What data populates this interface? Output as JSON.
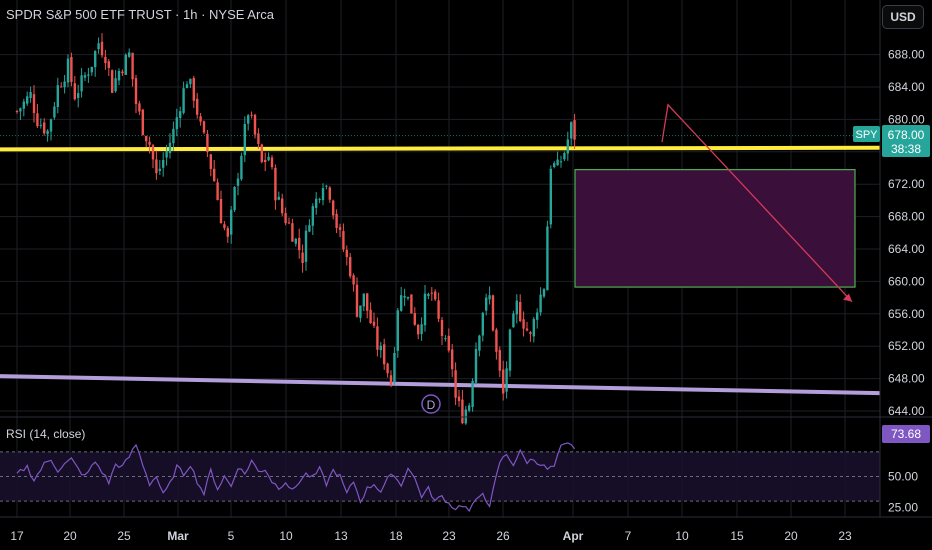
{
  "header": {
    "title": "SPDR S&P 500 ETF TRUST · 1h · NYSE Arca",
    "currency": "USD"
  },
  "price_badge": {
    "symbol": "SPY",
    "price": "678.00",
    "countdown": "38:38"
  },
  "rsi": {
    "label": "RSI (14, close)",
    "value": "73.68",
    "ticks": [
      "50.00",
      "25.00"
    ]
  },
  "colors": {
    "up": "#26a69a",
    "down": "#ef5350",
    "yellow": "#ffeb3b",
    "lavender": "#b39ddb",
    "zone_fill": "#3a0f3a",
    "zone_border": "#4caf50",
    "arrow": "#d43a5a",
    "rsi_line": "#7e57c2"
  },
  "marker": "D",
  "chart_data": {
    "type": "candlestick",
    "price_axis": {
      "ticks": [
        688,
        684,
        680,
        676,
        672,
        668,
        664,
        660,
        656,
        652,
        648,
        644
      ]
    },
    "time_axis": {
      "labels": [
        "17",
        "20",
        "25",
        "Mar",
        "5",
        "10",
        "13",
        "18",
        "23",
        "26",
        "Apr",
        "7",
        "10",
        "15",
        "20",
        "23"
      ]
    },
    "resistance_line": {
      "price_start": 676.3,
      "price_end": 676.5
    },
    "support_line": {
      "price_start": 648.3,
      "price_end": 646.2
    },
    "demand_zone": {
      "top": 673.8,
      "bottom": 659.3
    },
    "projection": {
      "from_price": 681.8,
      "to_price": 657.5
    },
    "close_path": [
      [
        0,
        681.0
      ],
      [
        4,
        683.0
      ],
      [
        6,
        680.0
      ],
      [
        9,
        678.5
      ],
      [
        12,
        684.0
      ],
      [
        15,
        686.5
      ],
      [
        17,
        683.0
      ],
      [
        19,
        684.5
      ],
      [
        22,
        687.0
      ],
      [
        24,
        689.5
      ],
      [
        26,
        688.0
      ],
      [
        28,
        684.0
      ],
      [
        30,
        686.0
      ],
      [
        33,
        688.0
      ],
      [
        35,
        682.0
      ],
      [
        37,
        679.0
      ],
      [
        39,
        677.0
      ],
      [
        41,
        673.0
      ],
      [
        44,
        676.0
      ],
      [
        46,
        678.5
      ],
      [
        48,
        682.0
      ],
      [
        50,
        685.0
      ],
      [
        52,
        683.0
      ],
      [
        54,
        679.0
      ],
      [
        56,
        676.0
      ],
      [
        58,
        672.5
      ],
      [
        60,
        668.0
      ],
      [
        62,
        665.0
      ],
      [
        64,
        671.0
      ],
      [
        66,
        676.0
      ],
      [
        68,
        681.0
      ],
      [
        70,
        678.0
      ],
      [
        72,
        674.5
      ],
      [
        74,
        675.5
      ],
      [
        76,
        671.0
      ],
      [
        78,
        668.5
      ],
      [
        80,
        667.0
      ],
      [
        82,
        665.0
      ],
      [
        84,
        663.0
      ],
      [
        86,
        668.0
      ],
      [
        88,
        670.0
      ],
      [
        90,
        672.5
      ],
      [
        92,
        671.0
      ],
      [
        94,
        667.0
      ],
      [
        96,
        664.0
      ],
      [
        98,
        661.5
      ],
      [
        100,
        656.5
      ],
      [
        102,
        658.0
      ],
      [
        104,
        655.0
      ],
      [
        106,
        652.0
      ],
      [
        108,
        650.5
      ],
      [
        110,
        647.5
      ],
      [
        112,
        657.0
      ],
      [
        114,
        659.0
      ],
      [
        116,
        656.5
      ],
      [
        118,
        654.0
      ],
      [
        120,
        657.5
      ],
      [
        122,
        658.5
      ],
      [
        124,
        655.0
      ],
      [
        126,
        652.0
      ],
      [
        128,
        649.5
      ],
      [
        129,
        645.5
      ],
      [
        131,
        643.5
      ],
      [
        133,
        645.0
      ],
      [
        135,
        652.0
      ],
      [
        137,
        656.5
      ],
      [
        139,
        658.0
      ],
      [
        141,
        651.0
      ],
      [
        143,
        646.0
      ],
      [
        145,
        653.0
      ],
      [
        147,
        657.0
      ],
      [
        149,
        655.0
      ],
      [
        151,
        653.0
      ],
      [
        153,
        657.0
      ],
      [
        155,
        659.5
      ],
      [
        157,
        674.5
      ],
      [
        159,
        674.0
      ],
      [
        161,
        676.0
      ],
      [
        163,
        679.0
      ],
      [
        164,
        678.0
      ]
    ],
    "rsi_path": [
      [
        0,
        52
      ],
      [
        3,
        58
      ],
      [
        5,
        47
      ],
      [
        8,
        60
      ],
      [
        10,
        64
      ],
      [
        12,
        55
      ],
      [
        14,
        60
      ],
      [
        16,
        64
      ],
      [
        18,
        56
      ],
      [
        20,
        50
      ],
      [
        23,
        62
      ],
      [
        25,
        54
      ],
      [
        27,
        45
      ],
      [
        29,
        60
      ],
      [
        31,
        58
      ],
      [
        33,
        66
      ],
      [
        35,
        76
      ],
      [
        37,
        60
      ],
      [
        39,
        44
      ],
      [
        41,
        50
      ],
      [
        43,
        35
      ],
      [
        45,
        44
      ],
      [
        47,
        58
      ],
      [
        49,
        52
      ],
      [
        51,
        60
      ],
      [
        53,
        46
      ],
      [
        55,
        36
      ],
      [
        57,
        55
      ],
      [
        59,
        40
      ],
      [
        61,
        50
      ],
      [
        63,
        42
      ],
      [
        65,
        58
      ],
      [
        67,
        52
      ],
      [
        69,
        63
      ],
      [
        71,
        54
      ],
      [
        73,
        56
      ],
      [
        75,
        46
      ],
      [
        77,
        41
      ],
      [
        79,
        46
      ],
      [
        81,
        38
      ],
      [
        83,
        46
      ],
      [
        85,
        52
      ],
      [
        87,
        49
      ],
      [
        89,
        56
      ],
      [
        91,
        44
      ],
      [
        93,
        55
      ],
      [
        95,
        50
      ],
      [
        97,
        36
      ],
      [
        99,
        46
      ],
      [
        101,
        30
      ],
      [
        103,
        40
      ],
      [
        105,
        44
      ],
      [
        107,
        38
      ],
      [
        109,
        48
      ],
      [
        111,
        52
      ],
      [
        113,
        42
      ],
      [
        115,
        58
      ],
      [
        117,
        48
      ],
      [
        119,
        34
      ],
      [
        121,
        40
      ],
      [
        123,
        30
      ],
      [
        125,
        34
      ],
      [
        127,
        28
      ],
      [
        129,
        24
      ],
      [
        131,
        27
      ],
      [
        133,
        22
      ],
      [
        135,
        30
      ],
      [
        137,
        38
      ],
      [
        139,
        24
      ],
      [
        140,
        38
      ],
      [
        142,
        62
      ],
      [
        144,
        68
      ],
      [
        146,
        60
      ],
      [
        148,
        70
      ],
      [
        150,
        62
      ],
      [
        152,
        64
      ],
      [
        154,
        60
      ],
      [
        156,
        56
      ],
      [
        158,
        58
      ],
      [
        160,
        74
      ],
      [
        162,
        76
      ],
      [
        164,
        73.68
      ]
    ]
  }
}
